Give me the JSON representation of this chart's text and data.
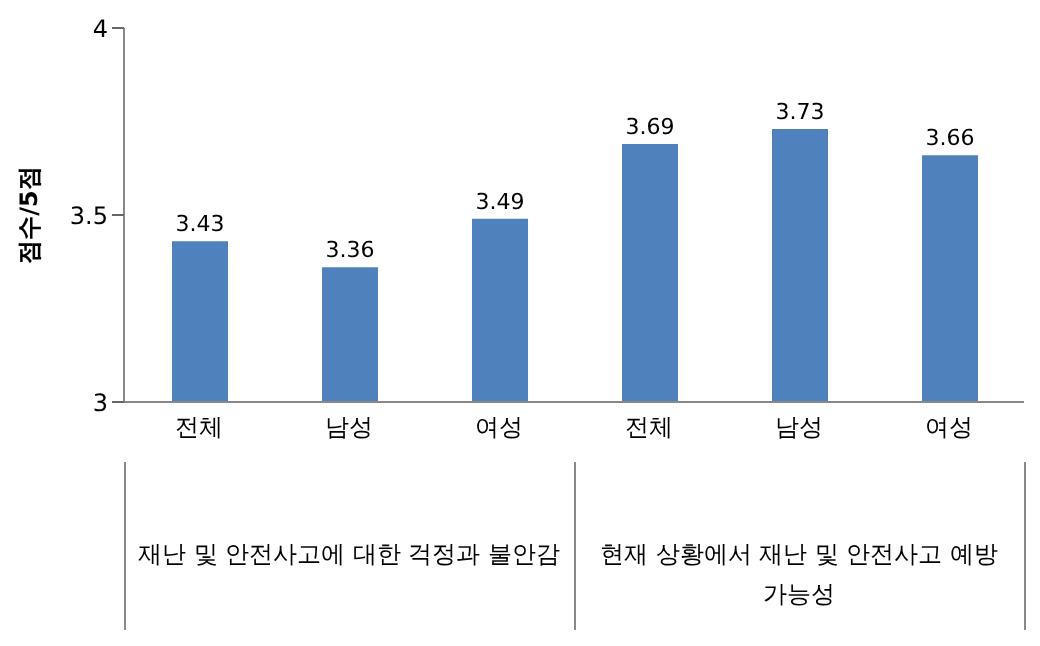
{
  "chart_data": {
    "type": "bar",
    "ylabel": "점수/5점",
    "categories": [
      "전체",
      "남성",
      "여성",
      "전체",
      "남성",
      "여성"
    ],
    "values": [
      3.43,
      3.36,
      3.49,
      3.69,
      3.73,
      3.66
    ],
    "color": "#4f81bd",
    "ylim": [
      3,
      4
    ],
    "yticks": [
      3,
      3.5,
      4
    ],
    "data_labels": true,
    "grid": false,
    "legend": false,
    "annotations": [
      "재난 및 안전사고에 대한 걱정과 불안감",
      "현재 상황에서 재난 및 안전사고 예방 가능성"
    ]
  }
}
